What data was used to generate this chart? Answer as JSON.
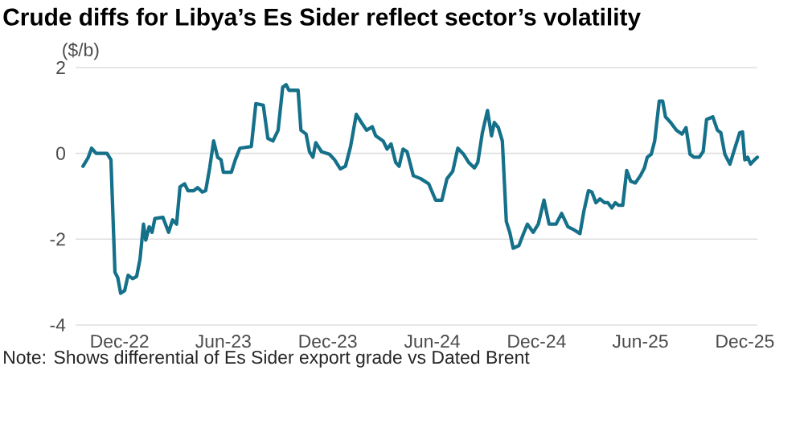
{
  "chart_data": {
    "type": "line",
    "title": "Crude diffs for Libya’s Es Sider reflect sector’s volatility",
    "ylabel": "($/b)",
    "annotations": [
      "Note: Shows differential of Es Sider export grade vs Dated Brent"
    ],
    "x": [
      "2022-09-28",
      "2022-10-07",
      "2022-10-13",
      "2022-10-21",
      "2022-11-09",
      "2022-11-16",
      "2022-11-23",
      "2022-11-28",
      "2022-12-03",
      "2022-12-10",
      "2022-12-16",
      "2022-12-24",
      "2022-12-31",
      "2023-01-06",
      "2023-01-12",
      "2023-01-16",
      "2023-01-22",
      "2023-01-27",
      "2023-02-01",
      "2023-02-15",
      "2023-02-25",
      "2023-03-04",
      "2023-03-11",
      "2023-03-17",
      "2023-03-25",
      "2023-03-31",
      "2023-04-10",
      "2023-04-17",
      "2023-04-25",
      "2023-05-01",
      "2023-05-08",
      "2023-05-15",
      "2023-05-22",
      "2023-05-28",
      "2023-06-01",
      "2023-06-15",
      "2023-06-22",
      "2023-06-30",
      "2023-07-20",
      "2023-07-28",
      "2023-08-10",
      "2023-08-18",
      "2023-08-27",
      "2023-09-05",
      "2023-09-13",
      "2023-09-19",
      "2023-09-24",
      "2023-10-10",
      "2023-10-15",
      "2023-10-24",
      "2023-10-30",
      "2023-11-05",
      "2023-11-10",
      "2023-11-20",
      "2023-12-04",
      "2023-12-13",
      "2023-12-23",
      "2024-01-01",
      "2024-01-10",
      "2024-01-20",
      "2024-01-29",
      "2024-02-07",
      "2024-02-17",
      "2024-02-23",
      "2024-03-07",
      "2024-03-14",
      "2024-03-21",
      "2024-03-29",
      "2024-04-04",
      "2024-04-11",
      "2024-04-18",
      "2024-04-29",
      "2024-05-12",
      "2024-05-26",
      "2024-06-07",
      "2024-06-18",
      "2024-06-27",
      "2024-07-07",
      "2024-07-16",
      "2024-07-26",
      "2024-08-04",
      "2024-08-14",
      "2024-08-20",
      "2024-08-28",
      "2024-09-06",
      "2024-09-13",
      "2024-09-18",
      "2024-09-25",
      "2024-10-02",
      "2024-10-09",
      "2024-10-15",
      "2024-10-21",
      "2024-10-31",
      "2024-11-09",
      "2024-11-15",
      "2024-11-25",
      "2024-12-04",
      "2024-12-14",
      "2024-12-23",
      "2025-01-04",
      "2025-01-14",
      "2025-01-25",
      "2025-02-03",
      "2025-02-15",
      "2025-02-22",
      "2025-03-02",
      "2025-03-08",
      "2025-03-15",
      "2025-03-22",
      "2025-03-30",
      "2025-04-05",
      "2025-04-12",
      "2025-04-18",
      "2025-04-24",
      "2025-05-01",
      "2025-05-08",
      "2025-05-15",
      "2025-05-23",
      "2025-06-01",
      "2025-06-08",
      "2025-06-13",
      "2025-06-20",
      "2025-06-26",
      "2025-07-04",
      "2025-07-10",
      "2025-07-15",
      "2025-07-24",
      "2025-08-03",
      "2025-08-13",
      "2025-08-20",
      "2025-08-27",
      "2025-09-03",
      "2025-09-12",
      "2025-09-19",
      "2025-09-25",
      "2025-10-06",
      "2025-10-14",
      "2025-10-20",
      "2025-10-27",
      "2025-11-05",
      "2025-11-13",
      "2025-11-22",
      "2025-11-27",
      "2025-12-01",
      "2025-12-06",
      "2025-12-11",
      "2025-12-18",
      "2025-12-23"
    ],
    "series": [
      {
        "color": "#15708a",
        "values": [
          -0.3,
          -0.1,
          0.12,
          0,
          0,
          -0.15,
          -2.77,
          -2.9,
          -3.26,
          -3.2,
          -2.84,
          -2.92,
          -2.87,
          -2.46,
          -1.65,
          -2.02,
          -1.71,
          -1.84,
          -1.52,
          -1.49,
          -1.84,
          -1.55,
          -1.65,
          -0.78,
          -0.71,
          -0.87,
          -0.87,
          -0.8,
          -0.9,
          -0.87,
          -0.34,
          0.29,
          -0.09,
          -0.15,
          -0.44,
          -0.44,
          -0.15,
          0.12,
          0.16,
          1.16,
          1.12,
          0.35,
          0.29,
          0.54,
          1.54,
          1.6,
          1.47,
          1.47,
          0.54,
          0.45,
          0.04,
          -0.09,
          0.25,
          0.04,
          -0.02,
          -0.15,
          -0.36,
          -0.3,
          0.16,
          0.91,
          0.72,
          0.54,
          0.62,
          0.41,
          0.29,
          0.1,
          0.22,
          -0.21,
          -0.3,
          0.1,
          0.04,
          -0.52,
          -0.59,
          -0.71,
          -1.09,
          -1.09,
          -0.59,
          -0.42,
          0.12,
          -0.02,
          -0.21,
          -0.34,
          -0.21,
          0.48,
          1.0,
          0.41,
          0.72,
          0.6,
          0.29,
          -1.59,
          -1.84,
          -2.21,
          -2.15,
          -1.84,
          -1.65,
          -1.84,
          -1.65,
          -1.09,
          -1.65,
          -1.65,
          -1.4,
          -1.71,
          -1.77,
          -1.87,
          -1.34,
          -0.87,
          -0.9,
          -1.15,
          -1.06,
          -1.15,
          -1.15,
          -1.27,
          -1.15,
          -1.21,
          -1.21,
          -0.4,
          -0.65,
          -0.69,
          -0.52,
          -0.34,
          -0.09,
          -0.02,
          0.29,
          1.22,
          1.22,
          0.85,
          0.72,
          0.54,
          0.45,
          0.6,
          -0.02,
          -0.09,
          -0.09,
          0.04,
          0.79,
          0.85,
          0.54,
          0.48,
          -0.02,
          -0.25,
          0.1,
          0.48,
          0.5,
          -0.15,
          -0.09,
          -0.25,
          -0.15,
          -0.09
        ]
      }
    ],
    "xlim": [
      "2022-09-15",
      "2025-12-23"
    ],
    "xticks": [
      {
        "value": "2022-12-01",
        "label": "Dec-22"
      },
      {
        "value": "2023-06-01",
        "label": "Jun-23"
      },
      {
        "value": "2023-12-01",
        "label": "Dec-23"
      },
      {
        "value": "2024-06-01",
        "label": "Jun-24"
      },
      {
        "value": "2024-12-01",
        "label": "Dec-24"
      },
      {
        "value": "2025-06-01",
        "label": "Jun-25"
      },
      {
        "value": "2025-12-01",
        "label": "Dec-25"
      }
    ],
    "ylim": [
      -4,
      2
    ],
    "yticks": [
      -4,
      -2,
      0,
      2
    ],
    "grid": "y"
  }
}
